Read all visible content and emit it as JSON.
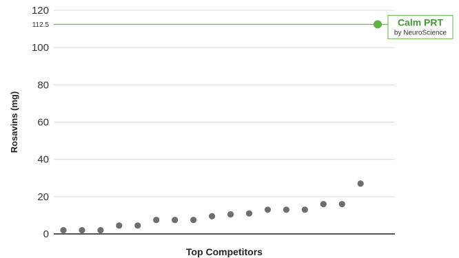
{
  "chart_data": {
    "type": "scatter",
    "title": "",
    "xlabel": "Top Competitors",
    "ylabel": "Rosavins (mg)",
    "ylim": [
      0,
      120
    ],
    "yticks": [
      0,
      20,
      40,
      60,
      80,
      100,
      120
    ],
    "grid": true,
    "series": [
      {
        "x": [
          1,
          2,
          3,
          4,
          5,
          6,
          7,
          8,
          9,
          10,
          11,
          12,
          13,
          14,
          15,
          16,
          17
        ],
        "values": [
          2,
          2,
          2,
          4.5,
          4.5,
          7.5,
          7.5,
          7.5,
          9.5,
          10.5,
          11,
          13,
          13,
          13,
          16,
          16,
          27
        ]
      }
    ],
    "reference_line": {
      "value": 112.5,
      "label": "112.5",
      "title": "Calm PRT",
      "subtitle": "by NeuroScience"
    }
  },
  "colors": {
    "points": "#6e6e6e",
    "grid": "#d9d9d9",
    "axis": "#555555",
    "highlight": "#5bb543",
    "highlight_text": "#3f9a32"
  }
}
